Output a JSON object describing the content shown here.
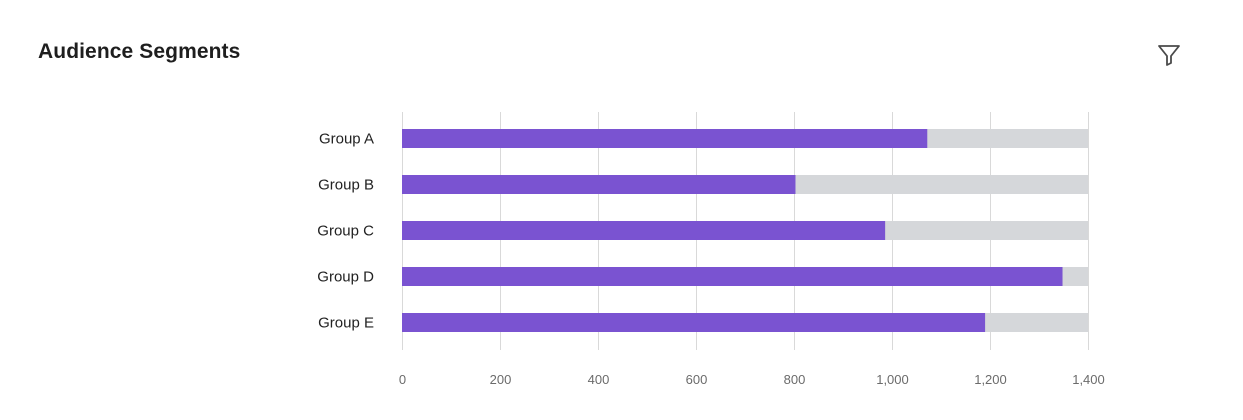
{
  "header": {
    "title": "Audience Segments",
    "filter_icon": "filter-icon"
  },
  "colors": {
    "bar": "#7a53d1",
    "track": "#d5d7da",
    "grid": "#d9d9d9",
    "axis_text": "#6b6b6b"
  },
  "chart_data": {
    "type": "bar",
    "orientation": "horizontal",
    "title": "",
    "xlabel": "",
    "ylabel": "",
    "categories": [
      "Group A",
      "Group B",
      "Group C",
      "Group D",
      "Group E"
    ],
    "values": [
      1072,
      803,
      986,
      1348,
      1190
    ],
    "max": 1400,
    "xlim": [
      0,
      1400
    ],
    "xticks": [
      0,
      200,
      400,
      600,
      800,
      1000,
      1200,
      1400
    ],
    "xtick_labels": [
      "0",
      "200",
      "400",
      "600",
      "800",
      "1,000",
      "1,200",
      "1,400"
    ],
    "grid": true,
    "legend": "none"
  }
}
